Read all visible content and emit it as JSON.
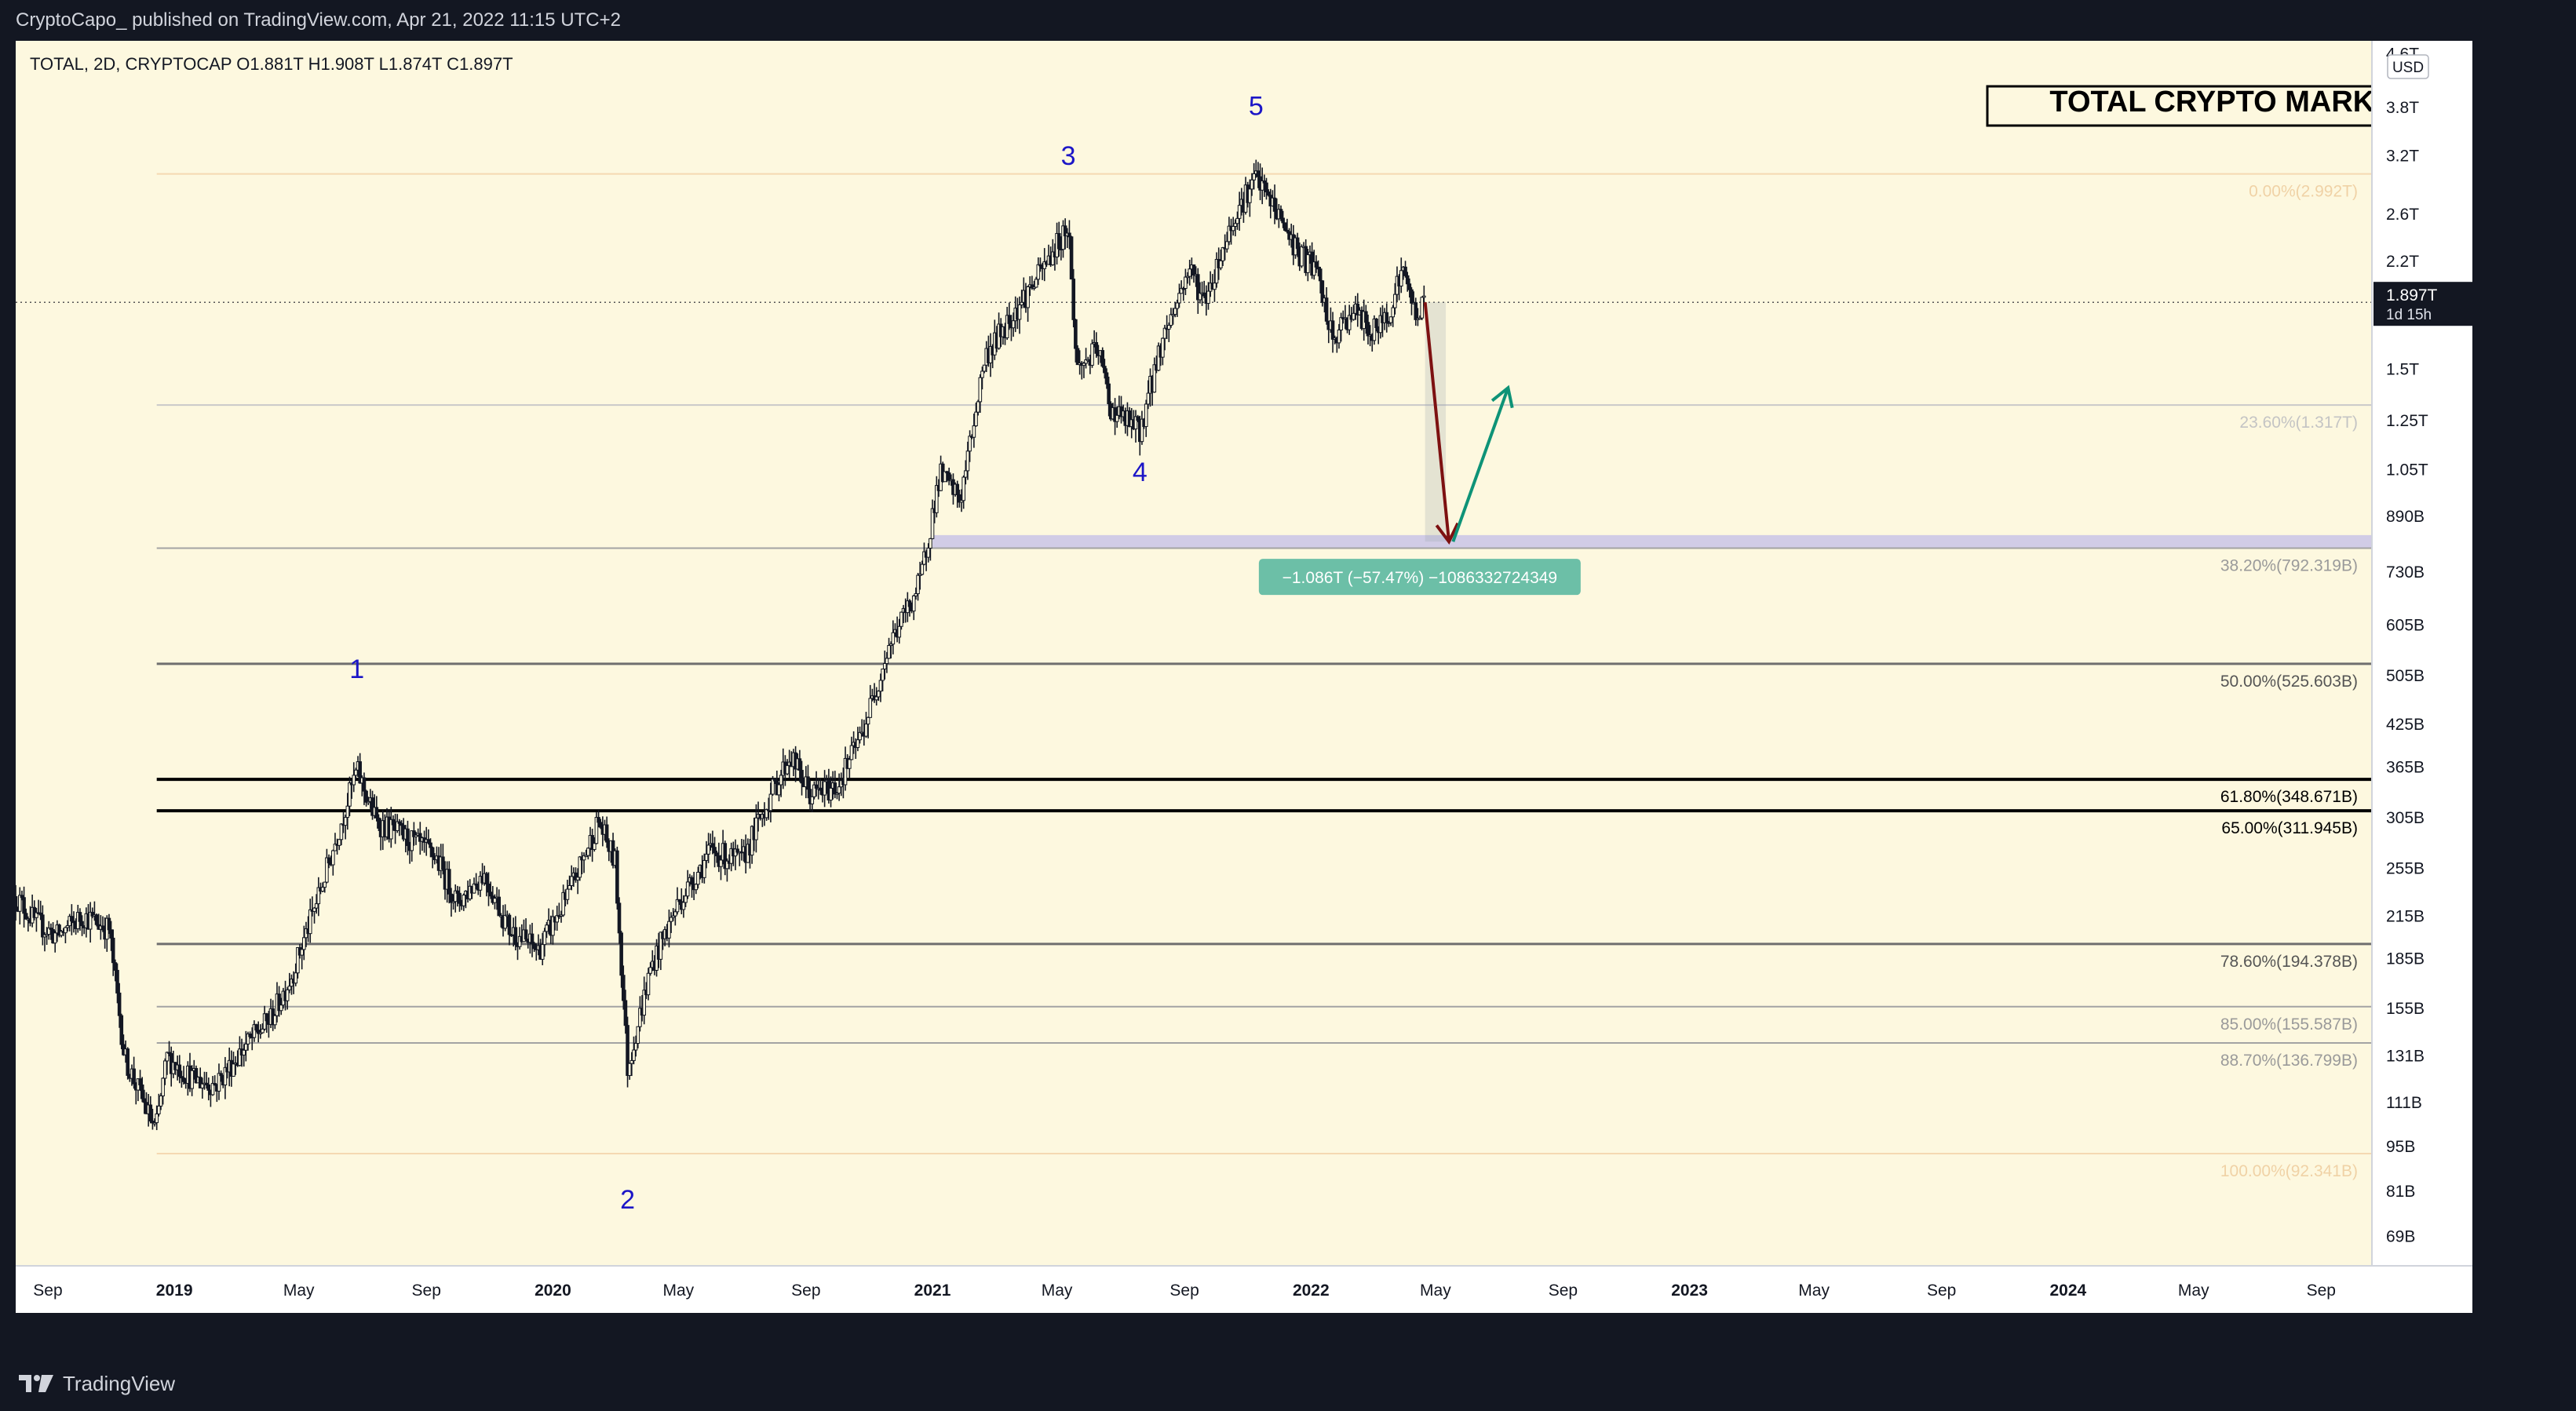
{
  "header": {
    "publisher": "CryptoCapo_  published on TradingView.com, Apr 21, 2022 11:15 UTC+2",
    "symbol_line": "TOTAL, 2D, CRYPTOCAP  O1.881T  H1.908T  L1.874T  C1.897T"
  },
  "footer": {
    "brand": "TradingView"
  },
  "chart_data": {
    "type": "candlestick",
    "title": "TOTAL CRYPTO MARKET CAP",
    "y_scale": "log",
    "ylim": [
      62,
      4800
    ],
    "y_unit": "USD",
    "xlim": [
      "2018-08-01",
      "2024-10-20"
    ],
    "y_tick_labels": [
      {
        "label": "4.6T",
        "v": 4600
      },
      {
        "label": "3.8T",
        "v": 3800
      },
      {
        "label": "3.2T",
        "v": 3200
      },
      {
        "label": "2.6T",
        "v": 2600
      },
      {
        "label": "2.2T",
        "v": 2200
      },
      {
        "label": "1.5T",
        "v": 1500
      },
      {
        "label": "1.25T",
        "v": 1250
      },
      {
        "label": "1.05T",
        "v": 1050
      },
      {
        "label": "890B",
        "v": 890
      },
      {
        "label": "730B",
        "v": 730
      },
      {
        "label": "605B",
        "v": 605
      },
      {
        "label": "505B",
        "v": 505
      },
      {
        "label": "425B",
        "v": 425
      },
      {
        "label": "365B",
        "v": 365
      },
      {
        "label": "305B",
        "v": 305
      },
      {
        "label": "255B",
        "v": 255
      },
      {
        "label": "215B",
        "v": 215
      },
      {
        "label": "185B",
        "v": 185
      },
      {
        "label": "155B",
        "v": 155
      },
      {
        "label": "131B",
        "v": 131
      },
      {
        "label": "111B",
        "v": 111
      },
      {
        "label": "95B",
        "v": 95
      },
      {
        "label": "81B",
        "v": 81
      },
      {
        "label": "69B",
        "v": 69
      }
    ],
    "x_tick_labels": [
      {
        "label": "Sep",
        "d": "2018-09-01",
        "bold": false
      },
      {
        "label": "2019",
        "d": "2019-01-01",
        "bold": true
      },
      {
        "label": "May",
        "d": "2019-05-01",
        "bold": false
      },
      {
        "label": "Sep",
        "d": "2019-09-01",
        "bold": false
      },
      {
        "label": "2020",
        "d": "2020-01-01",
        "bold": true
      },
      {
        "label": "May",
        "d": "2020-05-01",
        "bold": false
      },
      {
        "label": "Sep",
        "d": "2020-09-01",
        "bold": false
      },
      {
        "label": "2021",
        "d": "2021-01-01",
        "bold": true
      },
      {
        "label": "May",
        "d": "2021-05-01",
        "bold": false
      },
      {
        "label": "Sep",
        "d": "2021-09-01",
        "bold": false
      },
      {
        "label": "2022",
        "d": "2022-01-01",
        "bold": true
      },
      {
        "label": "May",
        "d": "2022-05-01",
        "bold": false
      },
      {
        "label": "Sep",
        "d": "2022-09-01",
        "bold": false
      },
      {
        "label": "2023",
        "d": "2023-01-01",
        "bold": true
      },
      {
        "label": "May",
        "d": "2023-05-01",
        "bold": false
      },
      {
        "label": "Sep",
        "d": "2023-09-01",
        "bold": false
      },
      {
        "label": "2024",
        "d": "2024-01-01",
        "bold": true
      },
      {
        "label": "May",
        "d": "2024-05-01",
        "bold": false
      },
      {
        "label": "Sep",
        "d": "2024-09-01",
        "bold": false
      }
    ],
    "price_path": [
      [
        "2018-08-01",
        230
      ],
      [
        "2018-08-20",
        210
      ],
      [
        "2018-09-10",
        200
      ],
      [
        "2018-10-05",
        215
      ],
      [
        "2018-10-30",
        205
      ],
      [
        "2018-11-14",
        130
      ],
      [
        "2018-11-28",
        115
      ],
      [
        "2018-12-14",
        100
      ],
      [
        "2018-12-25",
        130
      ],
      [
        "2019-01-20",
        120
      ],
      [
        "2019-02-10",
        118
      ],
      [
        "2019-03-10",
        135
      ],
      [
        "2019-04-05",
        150
      ],
      [
        "2019-04-25",
        175
      ],
      [
        "2019-05-20",
        230
      ],
      [
        "2019-06-26",
        360
      ],
      [
        "2019-07-15",
        300
      ],
      [
        "2019-08-10",
        285
      ],
      [
        "2019-09-10",
        265
      ],
      [
        "2019-10-01",
        225
      ],
      [
        "2019-10-26",
        250
      ],
      [
        "2019-11-20",
        205
      ],
      [
        "2019-12-18",
        190
      ],
      [
        "2020-01-15",
        230
      ],
      [
        "2020-02-14",
        300
      ],
      [
        "2020-03-01",
        260
      ],
      [
        "2020-03-13",
        125
      ],
      [
        "2020-04-05",
        180
      ],
      [
        "2020-05-01",
        225
      ],
      [
        "2020-06-01",
        270
      ],
      [
        "2020-07-01",
        260
      ],
      [
        "2020-07-25",
        320
      ],
      [
        "2020-08-17",
        380
      ],
      [
        "2020-09-05",
        330
      ],
      [
        "2020-10-01",
        340
      ],
      [
        "2020-10-25",
        410
      ],
      [
        "2020-11-20",
        560
      ],
      [
        "2020-12-20",
        700
      ],
      [
        "2021-01-08",
        1030
      ],
      [
        "2021-01-28",
        940
      ],
      [
        "2021-02-20",
        1550
      ],
      [
        "2021-03-15",
        1780
      ],
      [
        "2021-04-15",
        2100
      ],
      [
        "2021-05-12",
        2500
      ],
      [
        "2021-05-20",
        1500
      ],
      [
        "2021-06-10",
        1600
      ],
      [
        "2021-06-22",
        1300
      ],
      [
        "2021-07-20",
        1200
      ],
      [
        "2021-08-10",
        1650
      ],
      [
        "2021-09-06",
        2150
      ],
      [
        "2021-09-20",
        1900
      ],
      [
        "2021-10-20",
        2600
      ],
      [
        "2021-11-09",
        2950
      ],
      [
        "2021-11-30",
        2600
      ],
      [
        "2021-12-20",
        2250
      ],
      [
        "2022-01-05",
        2150
      ],
      [
        "2022-01-22",
        1650
      ],
      [
        "2022-02-10",
        1850
      ],
      [
        "2022-03-01",
        1700
      ],
      [
        "2022-03-15",
        1800
      ],
      [
        "2022-03-30",
        2130
      ],
      [
        "2022-04-12",
        1820
      ],
      [
        "2022-04-21",
        1897
      ]
    ],
    "series_points": [
      {
        "label": "1",
        "d": "2019-06-26",
        "v": 500
      },
      {
        "label": "2",
        "d": "2020-03-13",
        "v": 76
      },
      {
        "label": "3",
        "d": "2021-05-12",
        "v": 3090
      },
      {
        "label": "4",
        "d": "2021-07-20",
        "v": 1005
      },
      {
        "label": "5",
        "d": "2021-11-09",
        "v": 3690
      }
    ],
    "fib_levels": [
      {
        "label": "0.00%(2.992T)",
        "v": 2992,
        "style": "faint-orange"
      },
      {
        "label": "23.60%(1.317T)",
        "v": 1317,
        "style": "faint-grey"
      },
      {
        "label": "38.20%(792.319B)",
        "v": 792.319,
        "style": "mid-grey"
      },
      {
        "label": "50.00%(525.603B)",
        "v": 525.603,
        "style": "dark-grey"
      },
      {
        "label": "61.80%(348.671B)",
        "v": 348.671,
        "style": "black"
      },
      {
        "label": "65.00%(311.945B)",
        "v": 311.945,
        "style": "black"
      },
      {
        "label": "78.60%(194.378B)",
        "v": 194.378,
        "style": "dark-grey"
      },
      {
        "label": "85.00%(155.587B)",
        "v": 155.587,
        "style": "mid-grey"
      },
      {
        "label": "88.70%(136.799B)",
        "v": 136.799,
        "style": "mid-grey"
      },
      {
        "label": "100.00%(92.341B)",
        "v": 92.341,
        "style": "faint-orange"
      }
    ],
    "fib_start_date": "2018-12-15",
    "support_zone": {
      "top": 830,
      "bottom": 792
    },
    "support_zone_start_date": "2021-01-01",
    "measure": {
      "label": "−1.086T (−57.47%) −1086332724349",
      "from": {
        "d": "2022-04-21",
        "v": 1897
      },
      "to": {
        "d": "2022-05-11",
        "v": 811
      }
    },
    "down_arrow": {
      "from": {
        "d": "2022-04-21",
        "v": 1897
      },
      "to": {
        "d": "2022-05-14",
        "v": 811
      }
    },
    "up_arrow": {
      "from": {
        "d": "2022-05-18",
        "v": 811
      },
      "to": {
        "d": "2022-07-10",
        "v": 1400
      }
    },
    "last_price": {
      "label": "1.897T",
      "countdown": "1d 15h",
      "v": 1897
    },
    "colors": {
      "background": "#fdf8df",
      "candles": "#131722",
      "wave_labels": "#1c16c7",
      "support_zone": "#c2bee8",
      "down_arrow": "#7d1111",
      "up_arrow": "#0e9377",
      "measure_label_bg": "#6cbfa7",
      "axis_bg": "#ffffff"
    }
  }
}
